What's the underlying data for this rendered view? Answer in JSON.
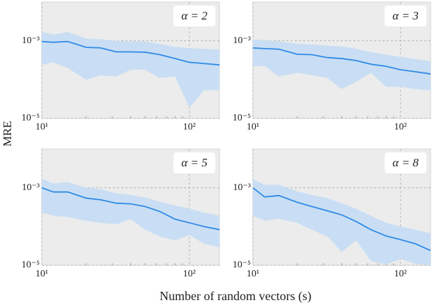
{
  "chart_data": {
    "type": "line",
    "xlabel": "Number of random vectors (s)",
    "ylabel": "MRE",
    "log_x": true,
    "log_y": true,
    "grid": true,
    "xlim": [
      10,
      160
    ],
    "ylim": [
      1e-05,
      0.01
    ],
    "xticks": [
      {
        "value": 10,
        "label": "10¹"
      },
      {
        "value": 100,
        "label": "10²"
      }
    ],
    "xminorticks": [
      20,
      30,
      40,
      50,
      60,
      70,
      80,
      90
    ],
    "yticks": [
      {
        "value": 1e-05,
        "label": "10⁻⁵"
      },
      {
        "value": 0.001,
        "label": "10⁻³"
      }
    ],
    "x": [
      10,
      12,
      15,
      20,
      25,
      32,
      40,
      50,
      63,
      80,
      100,
      126,
      160
    ],
    "panels": [
      {
        "title": "α = 2",
        "series": [
          {
            "color": "#2f8ae6",
            "band_color": "#c9def4",
            "values": [
              0.00096,
              0.00092,
              0.00096,
              0.00068,
              0.00066,
              0.00052,
              0.00052,
              0.00051,
              0.00044,
              0.00035,
              0.00028,
              0.00026,
              0.00024
            ],
            "upper": [
              0.0017,
              0.00145,
              0.0017,
              0.00115,
              0.0011,
              0.001,
              0.00096,
              0.00096,
              0.00083,
              0.0007,
              0.00065,
              0.00062,
              0.0006
            ],
            "lower": [
              0.00024,
              0.00028,
              0.0002,
              9.8e-05,
              0.00013,
              0.00012,
              0.00018,
              0.00018,
              0.00011,
              0.00012,
              1.9e-05,
              5.3e-05,
              5.3e-05
            ]
          }
        ]
      },
      {
        "title": "α = 3",
        "series": [
          {
            "color": "#2f8ae6",
            "band_color": "#c9def4",
            "values": [
              0.00066,
              0.00063,
              0.00061,
              0.00045,
              0.00044,
              0.00037,
              0.00035,
              0.00031,
              0.00025,
              0.00022,
              0.00018,
              0.00016,
              0.00014
            ],
            "upper": [
              0.0011,
              0.00104,
              0.00096,
              0.00085,
              0.00081,
              0.00075,
              0.00072,
              0.00063,
              0.000515,
              0.00044,
              0.000385,
              0.00034,
              0.0003
            ],
            "lower": [
              0.00022,
              0.000225,
              0.00012,
              0.00015,
              0.00013,
              0.00011,
              5.7e-05,
              8.7e-05,
              0.00015,
              6.5e-05,
              6.5e-05,
              5.7e-05,
              5.2e-05
            ]
          }
        ]
      },
      {
        "title": "α = 5",
        "series": [
          {
            "color": "#2f8ae6",
            "band_color": "#c9def4",
            "values": [
              0.001,
              0.00078,
              0.00078,
              0.00054,
              0.00049,
              0.0004,
              0.000385,
              0.00033,
              0.000245,
              0.000155,
              0.000125,
              0.0001,
              8.3e-05
            ],
            "upper": [
              0.0017,
              0.0013,
              0.0014,
              0.001,
              0.00092,
              0.00072,
              0.00066,
              0.00056,
              0.00044,
              0.00035,
              0.00029,
              0.00023,
              0.00019
            ],
            "lower": [
              0.00023,
              0.00019,
              0.000175,
              0.00014,
              0.000125,
              0.000115,
              0.000155,
              8.3e-05,
              5.5e-05,
              4.4e-05,
              6e-05,
              3.6e-05,
              2.9e-05
            ]
          }
        ]
      },
      {
        "title": "α = 8",
        "series": [
          {
            "color": "#2f8ae6",
            "band_color": "#c9def4",
            "values": [
              0.001,
              0.00058,
              0.00063,
              0.00042,
              0.00033,
              0.000255,
              0.0002,
              0.000135,
              8.3e-05,
              5.7e-05,
              4.6e-05,
              3.6e-05,
              2.4e-05
            ],
            "upper": [
              0.00165,
              0.0012,
              0.0012,
              0.00081,
              0.00066,
              0.00054,
              0.0004,
              0.00029,
              0.00019,
              0.000125,
              0.0001,
              8.3e-05,
              6.7e-05
            ],
            "lower": [
              0.00019,
              0.00014,
              0.00016,
              0.000125,
              8.3e-05,
              5.5e-05,
              2.2e-05,
              4.4e-05,
              1.3e-05,
              1.05e-05,
              1.45e-05,
              1.1e-05,
              1e-05
            ]
          }
        ]
      }
    ]
  }
}
